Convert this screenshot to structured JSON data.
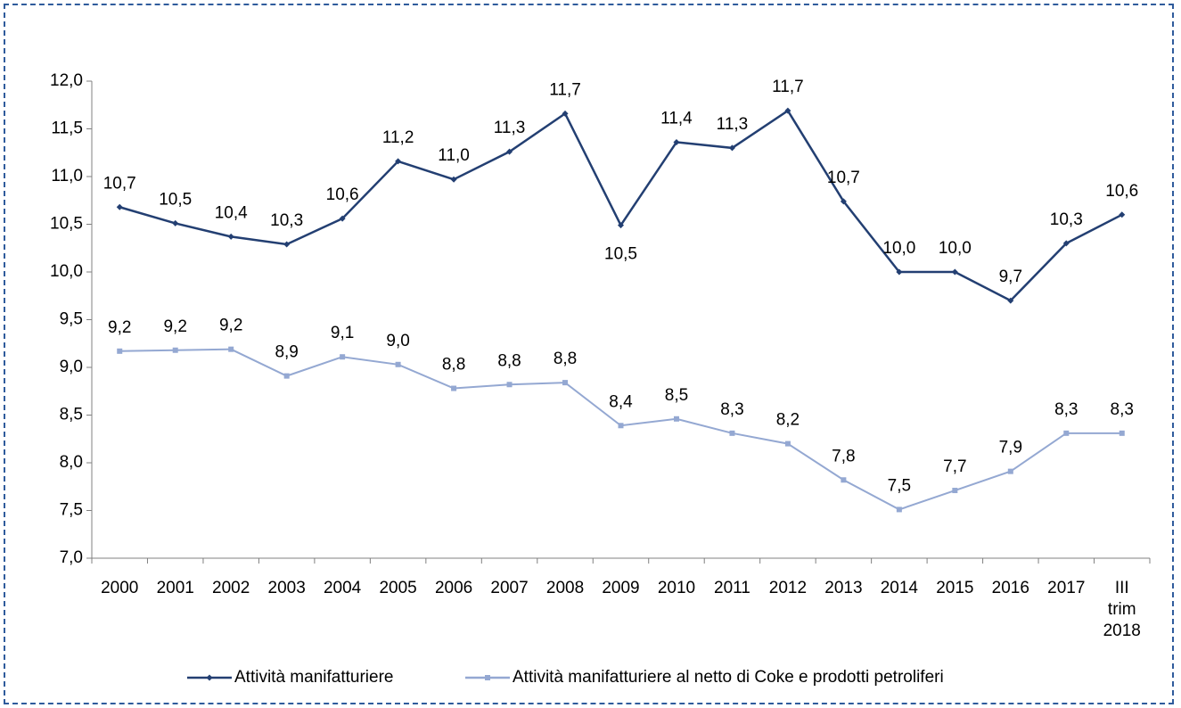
{
  "chart_data": {
    "type": "line",
    "categories": [
      "2000",
      "2001",
      "2002",
      "2003",
      "2004",
      "2005",
      "2006",
      "2007",
      "2008",
      "2009",
      "2010",
      "2011",
      "2012",
      "2013",
      "2014",
      "2015",
      "2016",
      "2017",
      "III trim 2018"
    ],
    "series": [
      {
        "name": "Attività manifatturiere",
        "color": "#233f72",
        "values": [
          10.68,
          10.51,
          10.37,
          10.29,
          10.56,
          11.16,
          10.97,
          11.26,
          11.66,
          10.49,
          11.36,
          11.3,
          11.69,
          10.74,
          10.0,
          10.0,
          9.7,
          10.3,
          10.6
        ],
        "value_labels": [
          "10,7",
          "10,5",
          "10,4",
          "10,3",
          "10,6",
          "11,2",
          "11,0",
          "11,3",
          "11,7",
          "10,5",
          "11,4",
          "11,3",
          "11,7",
          "10,7",
          "10,0",
          "10,0",
          "9,7",
          "10,3",
          "10,6"
        ]
      },
      {
        "name": "Attività manifatturiere al netto di Coke e prodotti petroliferi",
        "color": "#94a8d2",
        "values": [
          9.17,
          9.18,
          9.19,
          8.91,
          9.11,
          9.03,
          8.78,
          8.82,
          8.84,
          8.39,
          8.46,
          8.31,
          8.2,
          7.82,
          7.51,
          7.71,
          7.91,
          8.31,
          8.31
        ],
        "value_labels": [
          "9,2",
          "9,2",
          "9,2",
          "8,9",
          "9,1",
          "9,0",
          "8,8",
          "8,8",
          "8,8",
          "8,4",
          "8,5",
          "8,3",
          "8,2",
          "7,8",
          "7,5",
          "7,7",
          "7,9",
          "8,3",
          "8,3"
        ]
      }
    ],
    "ylim": [
      7.0,
      12.0
    ],
    "yticks": [
      {
        "value": 7.0,
        "label": "7,0"
      },
      {
        "value": 7.5,
        "label": "7,5"
      },
      {
        "value": 8.0,
        "label": "8,0"
      },
      {
        "value": 8.5,
        "label": "8,5"
      },
      {
        "value": 9.0,
        "label": "9,0"
      },
      {
        "value": 9.5,
        "label": "9,5"
      },
      {
        "value": 10.0,
        "label": "10,0"
      },
      {
        "value": 10.5,
        "label": "10,5"
      },
      {
        "value": 11.0,
        "label": "11,0"
      },
      {
        "value": 11.5,
        "label": "11,5"
      },
      {
        "value": 12.0,
        "label": "12,0"
      }
    ],
    "grid": false,
    "legend": "bottom"
  }
}
